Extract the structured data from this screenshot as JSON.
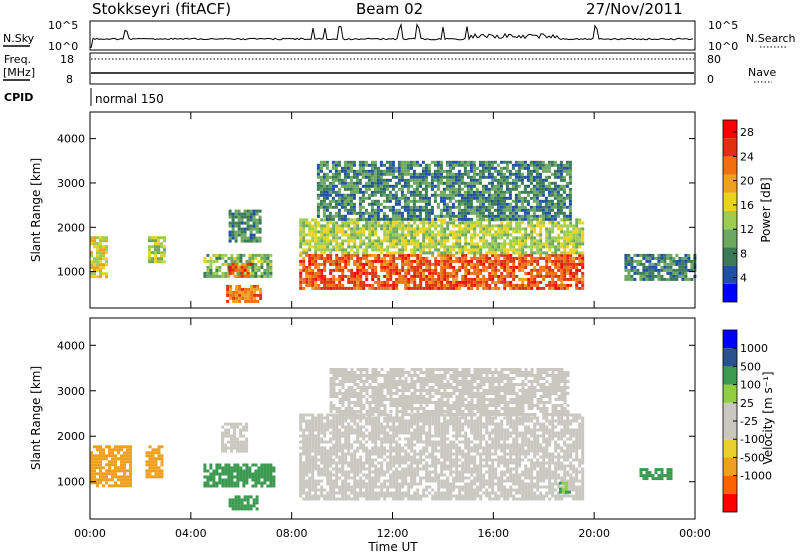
{
  "header": {
    "station": "Stokkseyri (fitACF)",
    "beam": "Beam 02",
    "date": "27/Nov/2011"
  },
  "status_panels": {
    "nsky_label": "N.Sky",
    "nsky_ticks": [
      "10^5",
      "10^0"
    ],
    "nsearch_label": "N.Search",
    "nsearch_ticks": [
      "10^5",
      "10^0"
    ],
    "freq_label": "Freq.",
    "freq_unit": "[MHz]",
    "freq_ticks": [
      "18",
      "8"
    ],
    "nave_label": "Nave",
    "nave_ticks": [
      "80",
      "0"
    ],
    "cpid_label": "CPID",
    "cpid_value": "normal 150"
  },
  "colors": {
    "power_scale": [
      "#0000ff",
      "#1f4fa6",
      "#3a7a56",
      "#6ca860",
      "#9ccc50",
      "#e8d420",
      "#f0a020",
      "#f07010",
      "#e03010",
      "#ff0000"
    ],
    "velocity_scale": [
      "#ff0000",
      "#ff6000",
      "#f0a020",
      "#e8d030",
      "#c8c8c0",
      "#c8c8c0",
      "#90d040",
      "#3a9a50",
      "#2a5090",
      "#0000ff"
    ],
    "ground_scatter": "#c8c8c0"
  },
  "chart_data": [
    {
      "type": "heatmap",
      "panel": "power",
      "ylabel": "Slant Range [km]",
      "yticks": [
        "1000",
        "2000",
        "3000",
        "4000"
      ],
      "ylim": [
        180,
        4600
      ],
      "xticks": [
        "00:00",
        "04:00",
        "08:00",
        "12:00",
        "16:00",
        "20:00",
        "00:00"
      ],
      "xlim_hours": [
        0,
        24
      ],
      "colorbar_label": "Power [dB]",
      "colorbar_ticks": [
        "4",
        "8",
        "12",
        "16",
        "20",
        "24",
        "28"
      ],
      "colorbar_range": [
        0,
        30
      ],
      "regions": [
        {
          "t0": 0.0,
          "t1": 0.6,
          "r0": 900,
          "r1": 1800,
          "value": 16
        },
        {
          "t0": 2.3,
          "t1": 2.9,
          "r0": 1200,
          "r1": 1800,
          "value": 14
        },
        {
          "t0": 4.5,
          "t1": 7.2,
          "r0": 900,
          "r1": 1400,
          "value": 12
        },
        {
          "t0": 5.4,
          "t1": 6.8,
          "r0": 300,
          "r1": 700,
          "value": 22
        },
        {
          "t0": 5.5,
          "t1": 6.4,
          "r0": 900,
          "r1": 1200,
          "value": 24
        },
        {
          "t0": 5.5,
          "t1": 6.8,
          "r0": 1700,
          "r1": 2400,
          "value": 8
        },
        {
          "t0": 8.3,
          "t1": 19.6,
          "r0": 600,
          "r1": 1400,
          "value": 24
        },
        {
          "t0": 8.3,
          "t1": 19.6,
          "r0": 1400,
          "r1": 2200,
          "value": 14
        },
        {
          "t0": 9.0,
          "t1": 19.0,
          "r0": 2200,
          "r1": 3500,
          "value": 8
        },
        {
          "t0": 21.2,
          "t1": 24.0,
          "r0": 800,
          "r1": 1400,
          "value": 8
        }
      ]
    },
    {
      "type": "heatmap",
      "panel": "velocity",
      "ylabel": "Slant Range [km]",
      "yticks": [
        "1000",
        "2000",
        "3000",
        "4000"
      ],
      "ylim": [
        180,
        4600
      ],
      "xticks": [
        "00:00",
        "04:00",
        "08:00",
        "12:00",
        "16:00",
        "20:00",
        "00:00"
      ],
      "xlabel": "Time UT",
      "xlim_hours": [
        0,
        24
      ],
      "colorbar_label": "Velocity [m s⁻¹]",
      "colorbar_ticks": [
        "1000",
        "500",
        "100",
        "25",
        "-25",
        "-100",
        "-500",
        "-1000"
      ],
      "regions": [
        {
          "t0": 0.0,
          "t1": 1.6,
          "r0": 900,
          "r1": 1800,
          "value": -200
        },
        {
          "t0": 2.2,
          "t1": 2.9,
          "r0": 1100,
          "r1": 1800,
          "value": -300
        },
        {
          "t0": 4.5,
          "t1": 7.3,
          "r0": 900,
          "r1": 1400,
          "value": 200
        },
        {
          "t0": 5.5,
          "t1": 6.6,
          "r0": 400,
          "r1": 700,
          "value": 150
        },
        {
          "t0": 5.2,
          "t1": 6.2,
          "r0": 1700,
          "r1": 2300,
          "value": 0
        },
        {
          "t0": 8.3,
          "t1": 19.6,
          "r0": 600,
          "r1": 2500,
          "value": 0
        },
        {
          "t0": 9.5,
          "t1": 19.0,
          "r0": 2500,
          "r1": 3500,
          "value": 0
        },
        {
          "t0": 18.6,
          "t1": 19.0,
          "r0": 800,
          "r1": 1000,
          "value": 100
        },
        {
          "t0": 21.8,
          "t1": 23.0,
          "r0": 1100,
          "r1": 1300,
          "value": 200
        }
      ]
    }
  ]
}
